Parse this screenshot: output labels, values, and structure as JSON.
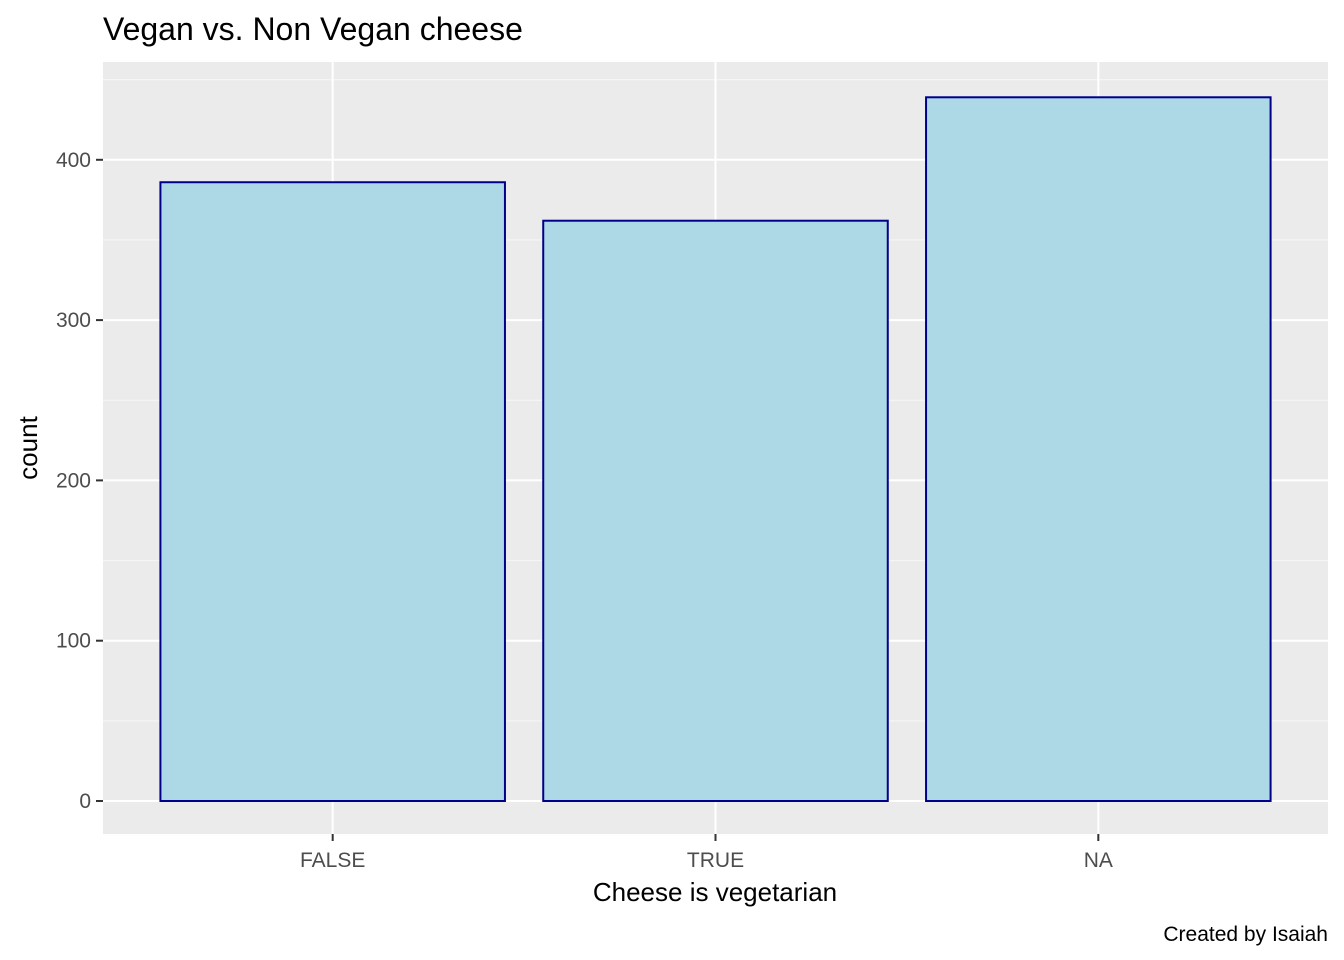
{
  "chart_data": {
    "type": "bar",
    "title": "Vegan vs. Non Vegan cheese",
    "xlabel": "Cheese is vegetarian",
    "ylabel": "count",
    "caption": "Created by Isaiah",
    "categories": [
      "FALSE",
      "TRUE",
      "NA"
    ],
    "values": [
      386,
      362,
      439
    ],
    "ylim": [
      0,
      460
    ],
    "yticks": [
      0,
      100,
      200,
      300,
      400
    ],
    "ytick_labels": [
      "0",
      "100",
      "200",
      "300",
      "400"
    ],
    "grid": true,
    "legend": "none",
    "colors": {
      "bar_fill": "#add8e6",
      "bar_outline": "#00008b",
      "panel_background": "#ebebeb",
      "grid_major": "#ffffff",
      "grid_minor": "#f5f5f5",
      "tick_color": "#333333"
    }
  }
}
